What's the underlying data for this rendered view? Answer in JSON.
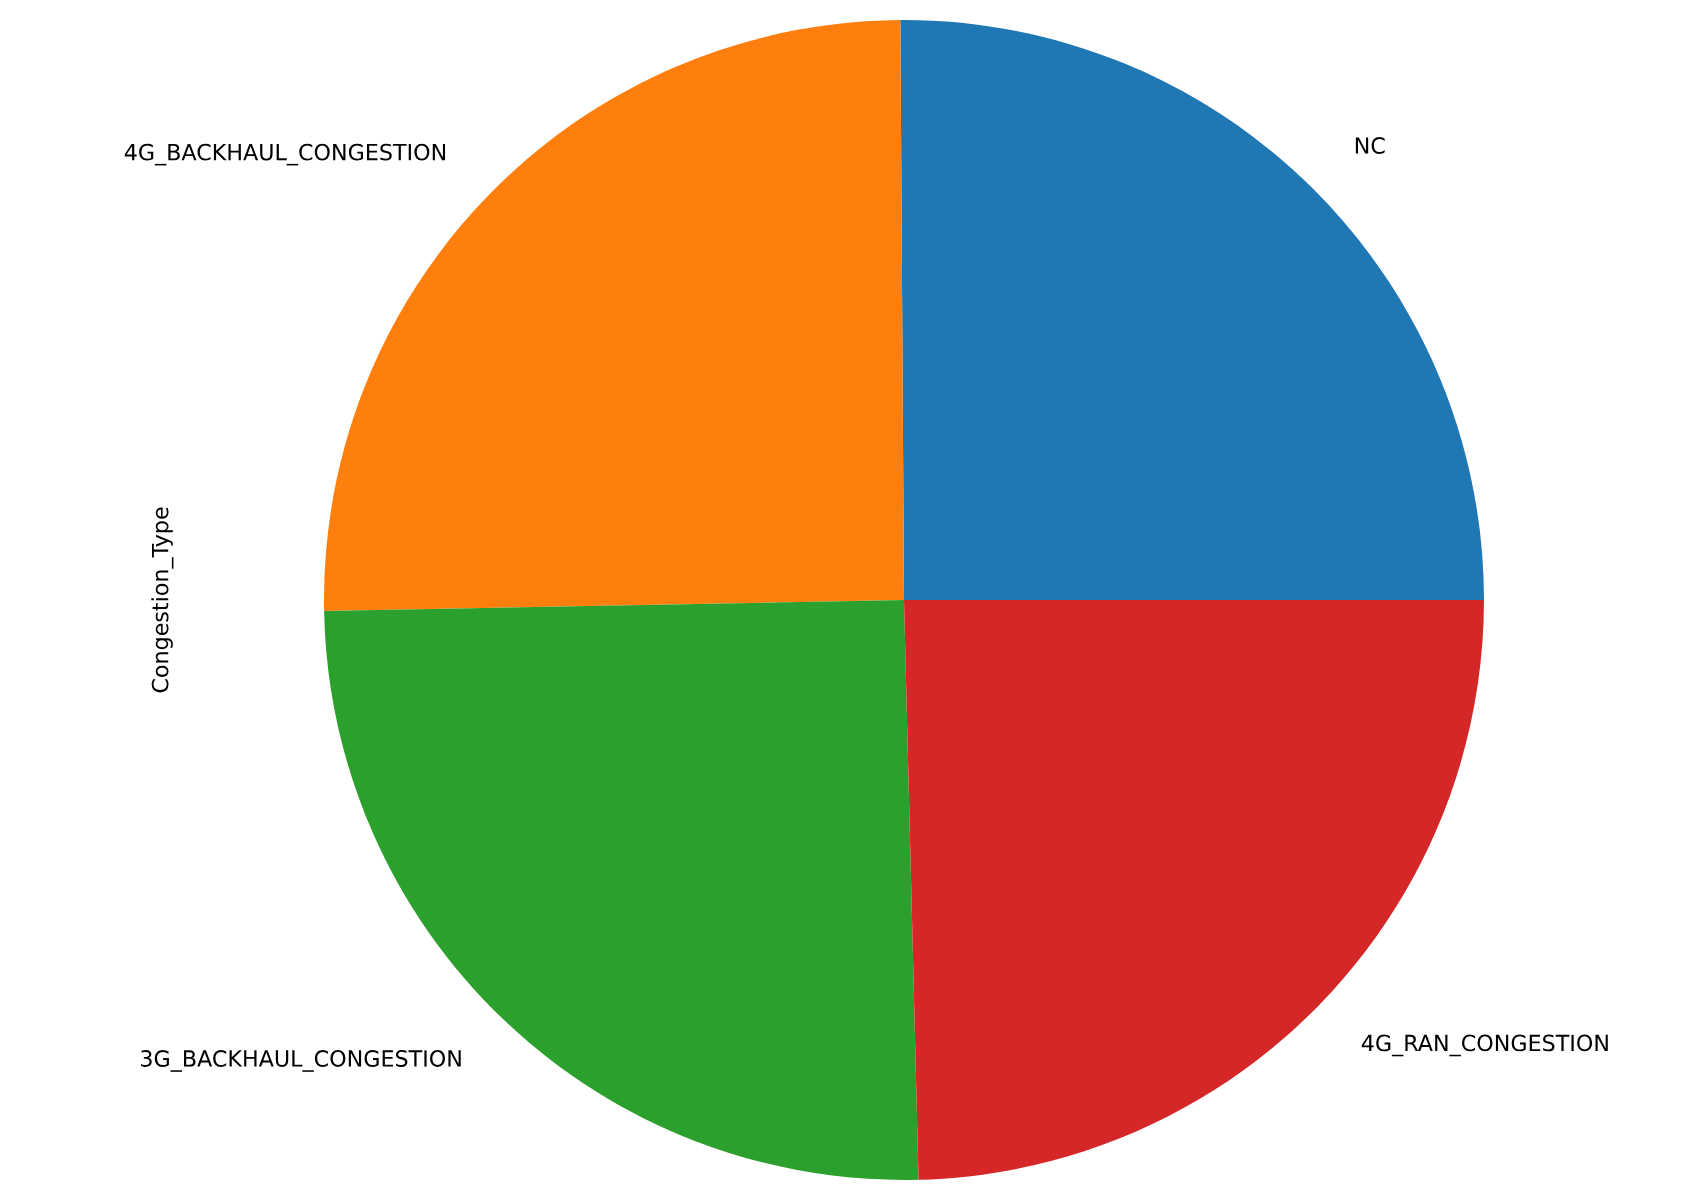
{
  "chart_data": {
    "type": "pie",
    "ylabel": "Congestion_Type",
    "categories": [
      "NC",
      "4G_BACKHAUL_CONGESTION",
      "3G_BACKHAUL_CONGESTION",
      "4G_RAN_CONGESTION"
    ],
    "values": [
      25.1,
      25.2,
      25.1,
      24.6
    ],
    "colors": [
      "#1f77b4",
      "#ff7f0e",
      "#2ca02c",
      "#d62728"
    ]
  }
}
